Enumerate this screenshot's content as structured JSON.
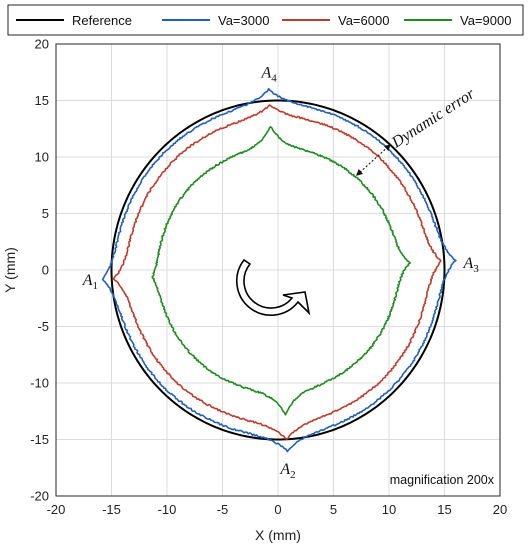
{
  "chart_data": {
    "type": "line",
    "title": "",
    "xlabel": "X (mm)",
    "ylabel": "Y (mm)",
    "xlim": [
      -20,
      20
    ],
    "ylim": [
      -20,
      20
    ],
    "x_ticks": [
      -20,
      -15,
      -10,
      -5,
      0,
      5,
      10,
      15,
      20
    ],
    "y_ticks": [
      -20,
      -15,
      -10,
      -5,
      0,
      5,
      10,
      15,
      20
    ],
    "grid": true,
    "legend_placement": "top",
    "series": [
      {
        "name": "Reference",
        "color": "#000000",
        "shape": "circle",
        "radius": 15,
        "center": [
          0,
          0
        ]
      },
      {
        "name": "Va=3000",
        "color": "#1f5fbf",
        "shape": "contour",
        "base_radius": 14.6,
        "cusps": [
          {
            "label_id": "A1",
            "angle_deg": 183,
            "peak": [
              -15.8,
              -0.9
            ]
          },
          {
            "label_id": "A2",
            "angle_deg": 273,
            "peak": [
              0.9,
              -16.0
            ]
          },
          {
            "label_id": "A3",
            "angle_deg": 3,
            "peak": [
              16.0,
              0.6
            ]
          },
          {
            "label_id": "A4",
            "angle_deg": 93,
            "peak": [
              -0.8,
              16.0
            ]
          }
        ]
      },
      {
        "name": "Va=6000",
        "color": "#c0392b",
        "shape": "contour",
        "base_radius": 13.5,
        "cusps": [
          {
            "angle_deg": 183,
            "peak": [
              -14.8,
              -0.9
            ]
          },
          {
            "angle_deg": 273,
            "peak": [
              0.9,
              -15.0
            ]
          },
          {
            "angle_deg": 3,
            "peak": [
              14.7,
              0.6
            ]
          },
          {
            "angle_deg": 93,
            "peak": [
              -0.8,
              14.6
            ]
          }
        ]
      },
      {
        "name": "Va=9000",
        "color": "#1e8c1e",
        "shape": "contour",
        "base_radius": 10.8,
        "cusps": [
          {
            "angle_deg": 183,
            "peak": [
              -11.3,
              -0.9
            ]
          },
          {
            "angle_deg": 273,
            "peak": [
              0.9,
              -12.8
            ]
          },
          {
            "angle_deg": 3,
            "peak": [
              11.9,
              0.6
            ]
          },
          {
            "angle_deg": 93,
            "peak": [
              -0.9,
              12.7
            ]
          }
        ]
      }
    ],
    "annotations": {
      "point_labels": [
        {
          "id": "A1",
          "base": "A",
          "sub": "1",
          "at": [
            -16.9,
            -0.9
          ]
        },
        {
          "id": "A2",
          "base": "A",
          "sub": "2",
          "at": [
            0.9,
            -17.6
          ]
        },
        {
          "id": "A3",
          "base": "A",
          "sub": "3",
          "at": [
            17.4,
            0.6
          ]
        },
        {
          "id": "A4",
          "base": "A",
          "sub": "4",
          "at": [
            -0.8,
            17.5
          ]
        }
      ],
      "dynamic_error_label": "Dynamic error",
      "magnification_note": "magnification 200x",
      "rotation_direction": "clockwise"
    }
  }
}
